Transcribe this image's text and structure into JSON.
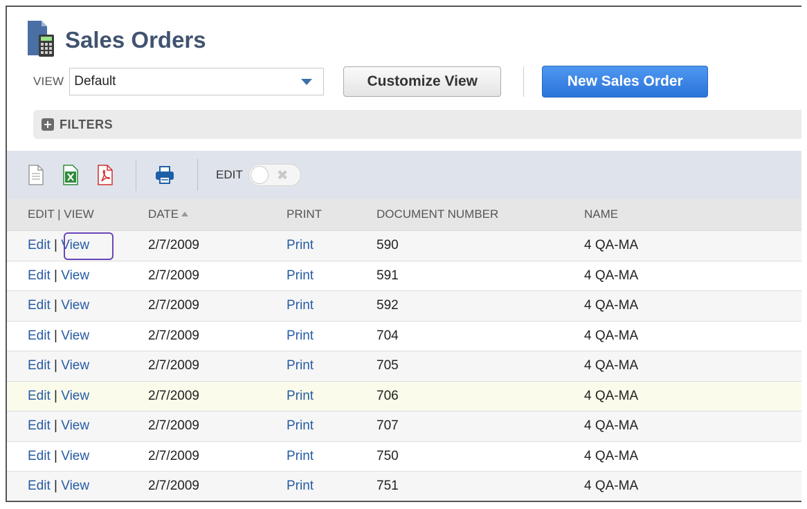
{
  "header": {
    "title": "Sales Orders",
    "icon": "sales-order-calculator-icon"
  },
  "view": {
    "label": "VIEW",
    "selected": "Default",
    "customize_label": "Customize View",
    "new_label": "New Sales Order"
  },
  "filters": {
    "label": "FILTERS",
    "icon": "plus-box-icon"
  },
  "toolbar": {
    "icons": [
      "document-icon",
      "excel-icon",
      "pdf-icon",
      "print-icon"
    ],
    "edit_label": "EDIT",
    "toggle_off_glyph": "✖"
  },
  "table": {
    "columns": {
      "edit_view": "EDIT | VIEW",
      "date": "DATE",
      "print": "PRINT",
      "document_number": "DOCUMENT NUMBER",
      "name": "NAME"
    },
    "sort": {
      "column": "date",
      "direction": "ascending"
    },
    "rows": [
      {
        "edit": "Edit",
        "sep": "|",
        "view": "View",
        "date": "2/7/2009",
        "print": "Print",
        "doc": "590",
        "name": "4 QA-MA"
      },
      {
        "edit": "Edit",
        "sep": "|",
        "view": "View",
        "date": "2/7/2009",
        "print": "Print",
        "doc": "591",
        "name": "4 QA-MA"
      },
      {
        "edit": "Edit",
        "sep": "|",
        "view": "View",
        "date": "2/7/2009",
        "print": "Print",
        "doc": "592",
        "name": "4 QA-MA"
      },
      {
        "edit": "Edit",
        "sep": "|",
        "view": "View",
        "date": "2/7/2009",
        "print": "Print",
        "doc": "704",
        "name": "4 QA-MA"
      },
      {
        "edit": "Edit",
        "sep": "|",
        "view": "View",
        "date": "2/7/2009",
        "print": "Print",
        "doc": "705",
        "name": "4 QA-MA"
      },
      {
        "edit": "Edit",
        "sep": "|",
        "view": "View",
        "date": "2/7/2009",
        "print": "Print",
        "doc": "706",
        "name": "4 QA-MA"
      },
      {
        "edit": "Edit",
        "sep": "|",
        "view": "View",
        "date": "2/7/2009",
        "print": "Print",
        "doc": "707",
        "name": "4 QA-MA"
      },
      {
        "edit": "Edit",
        "sep": "|",
        "view": "View",
        "date": "2/7/2009",
        "print": "Print",
        "doc": "750",
        "name": "4 QA-MA"
      },
      {
        "edit": "Edit",
        "sep": "|",
        "view": "View",
        "date": "2/7/2009",
        "print": "Print",
        "doc": "751",
        "name": "4 QA-MA"
      }
    ],
    "highlighted_row": 5,
    "focused_link": "row-0-view"
  },
  "colors": {
    "title": "#41536f",
    "link": "#255ba3",
    "primary_button": "#2b74d9",
    "toolbar_bg": "#dfe4ec",
    "focus_outline": "#6a46b8",
    "highlight_row": "#fafbeb"
  }
}
